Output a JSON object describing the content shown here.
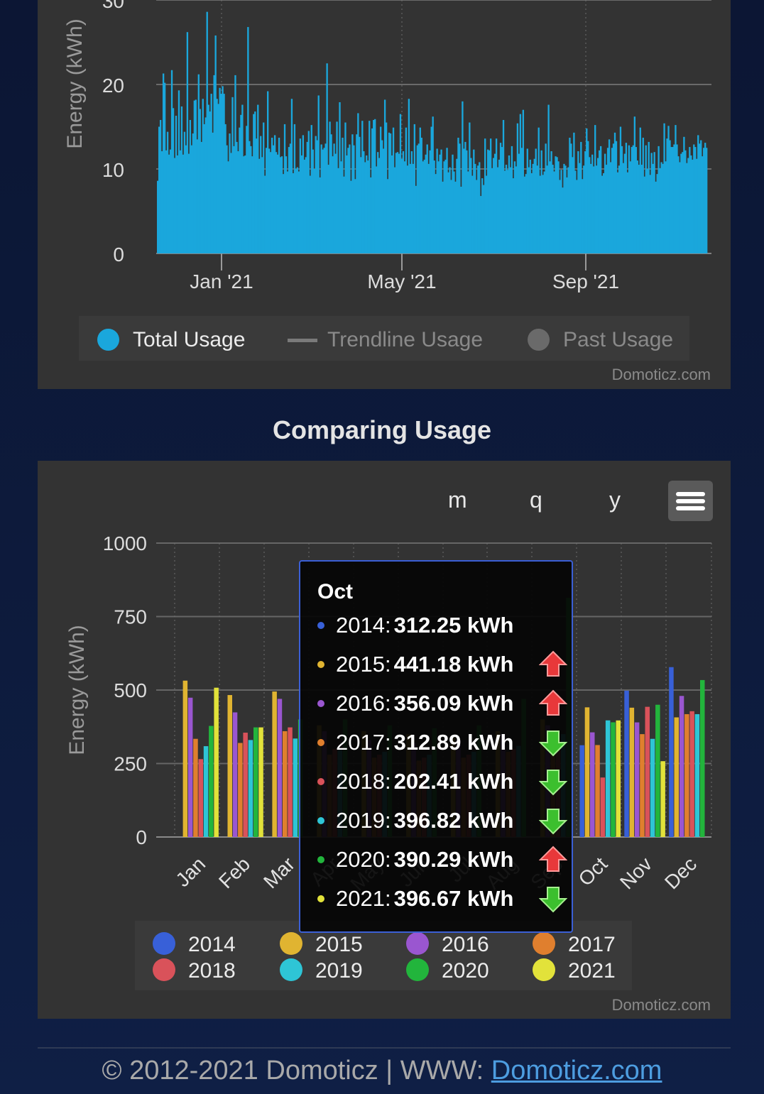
{
  "usage_chart": {
    "legend": {
      "total": "Total Usage",
      "trend": "Trendline Usage",
      "past": "Past Usage"
    },
    "credit": "Domoticz.com"
  },
  "comparing": {
    "title": "Comparing Usage",
    "buttons": {
      "m": "m",
      "q": "q",
      "y": "y"
    },
    "credit": "Domoticz.com",
    "tooltip": {
      "title": "Oct",
      "rows": [
        {
          "year": "2014:",
          "value": "312.25 kWh",
          "trend": ""
        },
        {
          "year": "2015:",
          "value": "441.18 kWh",
          "trend": "up"
        },
        {
          "year": "2016:",
          "value": "356.09 kWh",
          "trend": "up"
        },
        {
          "year": "2017:",
          "value": "312.89 kWh",
          "trend": "down"
        },
        {
          "year": "2018:",
          "value": "202.41 kWh",
          "trend": "down"
        },
        {
          "year": "2019:",
          "value": "396.82 kWh",
          "trend": "down"
        },
        {
          "year": "2020:",
          "value": "390.29 kWh",
          "trend": "up"
        },
        {
          "year": "2021:",
          "value": "396.67 kWh",
          "trend": "down"
        }
      ]
    }
  },
  "footer": {
    "text": "© 2012-2021 Domoticz | WWW: ",
    "link": "Domoticz.com"
  },
  "chart_data": [
    {
      "type": "bar",
      "ylabel": "Energy (kWh)",
      "ylim": [
        0,
        30
      ],
      "yticks": [
        "0",
        "10",
        "20",
        "30"
      ],
      "xticks": [
        "Jan '21",
        "May '21",
        "Sep '21"
      ],
      "grid": true,
      "legend_position": "bottom",
      "color": "#1aa7dc",
      "series": [
        {
          "name": "Total Usage",
          "values": [
            8.6,
            15.0,
            15.8,
            12.1,
            21.3,
            20.2,
            12.2,
            14.4,
            11.7,
            12.3,
            21.7,
            17.2,
            11.3,
            16.3,
            11.6,
            19.3,
            12.2,
            17.4,
            11.7,
            14.4,
            12.8,
            26.2,
            11.8,
            15.8,
            12.8,
            14.2,
            18.1,
            18.2,
            13.5,
            21.2,
            17.1,
            13.2,
            18.3,
            15.3,
            16.1,
            28.6,
            17.6,
            16.8,
            18.9,
            14.3,
            21.1,
            25.8,
            18.3,
            17.7,
            19.6,
            18.9,
            19.8,
            18.9,
            15.3,
            12.8,
            10.9,
            14.2,
            11.9,
            18.5,
            12.7,
            21.1,
            13.2,
            12.1,
            14.9,
            16.4,
            17.6,
            11.5,
            11.6,
            15.1,
            26.8,
            13.3,
            12.7,
            11.5,
            16.5,
            16.8,
            13.6,
            17.6,
            11.2,
            13.9,
            11.4,
            15.5,
            9.2,
            12.5,
            19.2,
            12.4,
            12.0,
            13.7,
            12.8,
            14.0,
            12.0,
            11.7,
            13.7,
            11.4,
            11.5,
            9.4,
            15.3,
            11.5,
            9.7,
            12.6,
            13.0,
            18.3,
            9.5,
            15.3,
            10.0,
            10.2,
            9.7,
            13.6,
            11.6,
            14.0,
            11.1,
            11.4,
            13.2,
            14.5,
            9.2,
            15.2,
            12.3,
            10.0,
            13.9,
            13.4,
            18.7,
            9.0,
            12.9,
            12.3,
            12.5,
            13.0,
            22.5,
            10.5,
            15.6,
            14.1,
            11.5,
            13.0,
            11.8,
            15.6,
            10.1,
            17.9,
            10.9,
            13.7,
            9.1,
            15.5,
            11.6,
            12.5,
            12.9,
            8.6,
            14.1,
            12.8,
            8.8,
            14.1,
            16.6,
            13.8,
            11.4,
            15.7,
            12.1,
            10.8,
            11.6,
            11.0,
            15.7,
            9.0,
            14.8,
            15.8,
            15.9,
            10.3,
            12.0,
            11.3,
            15.0,
            13.4,
            12.4,
            18.2,
            15.5,
            8.8,
            14.3,
            14.2,
            11.6,
            14.9,
            10.2,
            11.9,
            12.0,
            11.8,
            16.5,
            11.2,
            12.1,
            10.9,
            14.9,
            10.4,
            18.3,
            10.6,
            12.1,
            10.6,
            15.3,
            8.0,
            12.8,
            13.0,
            14.9,
            13.7,
            10.9,
            11.1,
            11.7,
            12.9,
            10.6,
            12.2,
            15.0,
            16.2,
            11.0,
            9.4,
            12.4,
            10.9,
            11.7,
            12.3,
            8.5,
            10.9,
            11.1,
            12.5,
            9.6,
            10.2,
            8.7,
            11.7,
            9.7,
            8.5,
            11.2,
            13.7,
            13.0,
            7.9,
            18.0,
            12.4,
            13.2,
            12.2,
            9.7,
            15.5,
            11.3,
            9.2,
            12.3,
            10.6,
            8.7,
            10.4,
            10.8,
            6.8,
            8.9,
            8.1,
            13.6,
            9.2,
            12.3,
            12.2,
            13.6,
            10.1,
            11.3,
            11.8,
            13.6,
            10.2,
            11.1,
            13.1,
            12.6,
            15.8,
            9.8,
            10.5,
            9.9,
            11.6,
            10.2,
            12.7,
            8.9,
            10.9,
            10.3,
            15.4,
            11.8,
            16.5,
            12.5,
            17.0,
            9.1,
            9.4,
            12.4,
            10.2,
            11.1,
            9.5,
            10.6,
            11.2,
            12.4,
            10.4,
            14.9,
            9.2,
            12.2,
            9.3,
            9.7,
            13.0,
            10.4,
            17.6,
            10.9,
            12.1,
            10.5,
            9.7,
            11.5,
            11.4,
            10.9,
            8.7,
            9.9,
            7.8,
            10.6,
            10.4,
            9.0,
            10.2,
            13.7,
            13.0,
            11.4,
            14.3,
            9.8,
            8.7,
            12.1,
            10.7,
            13.2,
            8.8,
            10.4,
            12.1,
            14.8,
            13.3,
            11.4,
            10.6,
            11.7,
            10.3,
            15.2,
            10.4,
            11.3,
            12.2,
            12.7,
            9.2,
            9.5,
            11.8,
            10.5,
            12.5,
            13.5,
            10.8,
            12.5,
            13.0,
            14.3,
            13.3,
            9.6,
            10.4,
            15.0,
            12.7,
            10.7,
            11.8,
            13.1,
            9.6,
            12.8,
            10.9,
            12.6,
            12.8,
            16.2,
            12.6,
            11.0,
            10.5,
            14.9,
            10.5,
            13.7,
            9.1,
            12.8,
            10.0,
            13.2,
            9.3,
            11.9,
            10.6,
            12.0,
            8.5,
            9.4,
            12.7,
            10.1,
            10.8,
            10.6,
            15.4,
            10.9,
            13.6,
            15.1,
            13.4,
            12.6,
            12.6,
            12.9,
            15.2,
            12.9,
            11.5,
            10.8,
            11.8,
            12.0,
            13.8,
            12.2,
            10.7,
            11.3,
            12.6,
            11.6,
            11.1,
            12.9,
            12.6,
            11.2,
            14.0,
            13.0,
            13.4,
            11.5,
            12.5,
            13.1,
            12.5
          ]
        }
      ]
    },
    {
      "type": "bar",
      "ylabel": "Energy (kWh)",
      "ylim": [
        0,
        1000
      ],
      "yticks": [
        "0",
        "250",
        "500",
        "750",
        "1000"
      ],
      "categories": [
        "Jan",
        "Feb",
        "Mar",
        "Apr",
        "May",
        "Jun",
        "Jul",
        "Aug",
        "Sep",
        "Oct",
        "Nov",
        "Dec"
      ],
      "grid": true,
      "legend_position": "bottom",
      "series": [
        {
          "name": "2014",
          "color": "#3860d8",
          "values": [
            0,
            0,
            0,
            0,
            0,
            0,
            0,
            0,
            0,
            312.25,
            498,
            578
          ]
        },
        {
          "name": "2015",
          "color": "#e0b431",
          "values": [
            532,
            483,
            495,
            380,
            360,
            350,
            340,
            360,
            400,
            441.18,
            440,
            407
          ]
        },
        {
          "name": "2016",
          "color": "#9a56d0",
          "values": [
            474,
            424,
            470,
            360,
            330,
            320,
            330,
            350,
            380,
            356.09,
            390,
            480
          ]
        },
        {
          "name": "2017",
          "color": "#e07f2e",
          "values": [
            334,
            320,
            360,
            280,
            270,
            260,
            270,
            290,
            330,
            312.89,
            350,
            418
          ]
        },
        {
          "name": "2018",
          "color": "#d9525a",
          "values": [
            265,
            355,
            373,
            300,
            280,
            270,
            280,
            300,
            300,
            202.41,
            443,
            428
          ]
        },
        {
          "name": "2019",
          "color": "#2ec5d6",
          "values": [
            309,
            330,
            335,
            300,
            290,
            280,
            290,
            310,
            350,
            396.82,
            334,
            418
          ]
        },
        {
          "name": "2020",
          "color": "#22b53c",
          "values": [
            378,
            373,
            400,
            400,
            380,
            370,
            380,
            470,
            814,
            390.29,
            450,
            534
          ]
        },
        {
          "name": "2021",
          "color": "#e2e23a",
          "values": [
            508,
            373,
            0,
            0,
            0,
            0,
            0,
            0,
            0,
            396.67,
            258,
            0
          ]
        }
      ]
    }
  ]
}
